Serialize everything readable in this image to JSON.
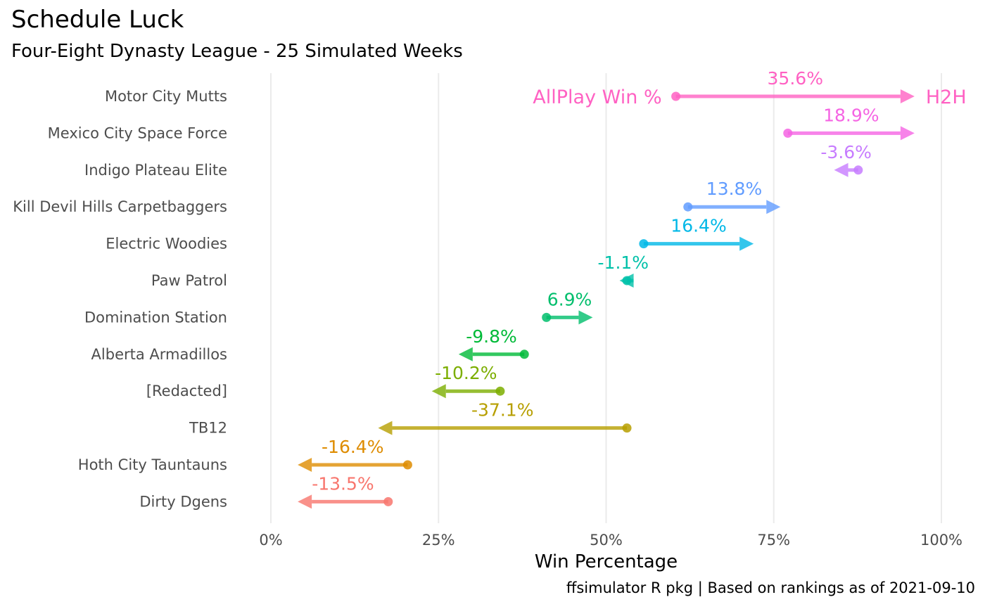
{
  "title": "Schedule Luck",
  "subtitle": "Four-Eight Dynasty League - 25 Simulated Weeks",
  "caption": "ffsimulator R pkg | Based on rankings as of 2021-09-10",
  "chart_data": {
    "type": "dumbbell-arrow",
    "xlabel": "Win Percentage",
    "xlim": [
      0,
      1
    ],
    "xticks": [
      0,
      0.25,
      0.5,
      0.75,
      1.0
    ],
    "xtick_labels": [
      "0%",
      "25%",
      "50%",
      "75%",
      "100%"
    ],
    "grid": "vertical major",
    "annotations": {
      "start": "AllPlay Win %",
      "end": "H2H"
    },
    "teams": [
      {
        "name": "Motor City Mutts",
        "allplay": 0.604,
        "h2h": 0.96,
        "delta_label": "35.6%",
        "color": "#FF61C3"
      },
      {
        "name": "Mexico City Space Force",
        "allplay": 0.771,
        "h2h": 0.96,
        "delta_label": "18.9%",
        "color": "#F564E3"
      },
      {
        "name": "Indigo Plateau Elite",
        "allplay": 0.876,
        "h2h": 0.84,
        "delta_label": "-3.6%",
        "color": "#C77CFF"
      },
      {
        "name": "Kill Devil Hills Carpetbaggers",
        "allplay": 0.622,
        "h2h": 0.76,
        "delta_label": "13.8%",
        "color": "#619CFF"
      },
      {
        "name": "Electric Woodies",
        "allplay": 0.556,
        "h2h": 0.72,
        "delta_label": "16.4%",
        "color": "#00B8E7"
      },
      {
        "name": "Paw Patrol",
        "allplay": 0.531,
        "h2h": 0.52,
        "delta_label": "-1.1%",
        "color": "#00C1A9"
      },
      {
        "name": "Domination Station",
        "allplay": 0.411,
        "h2h": 0.48,
        "delta_label": "6.9%",
        "color": "#00BE6C"
      },
      {
        "name": "Alberta Armadillos",
        "allplay": 0.378,
        "h2h": 0.28,
        "delta_label": "-9.8%",
        "color": "#00BA38"
      },
      {
        "name": "[Redacted]",
        "allplay": 0.342,
        "h2h": 0.24,
        "delta_label": "-10.2%",
        "color": "#7CAE00"
      },
      {
        "name": "TB12",
        "allplay": 0.531,
        "h2h": 0.16,
        "delta_label": "-37.1%",
        "color": "#B79F00"
      },
      {
        "name": "Hoth City Tauntauns",
        "allplay": 0.204,
        "h2h": 0.04,
        "delta_label": "-16.4%",
        "color": "#DE8C00"
      },
      {
        "name": "Dirty Dgens",
        "allplay": 0.175,
        "h2h": 0.04,
        "delta_label": "-13.5%",
        "color": "#F8766D"
      }
    ]
  }
}
